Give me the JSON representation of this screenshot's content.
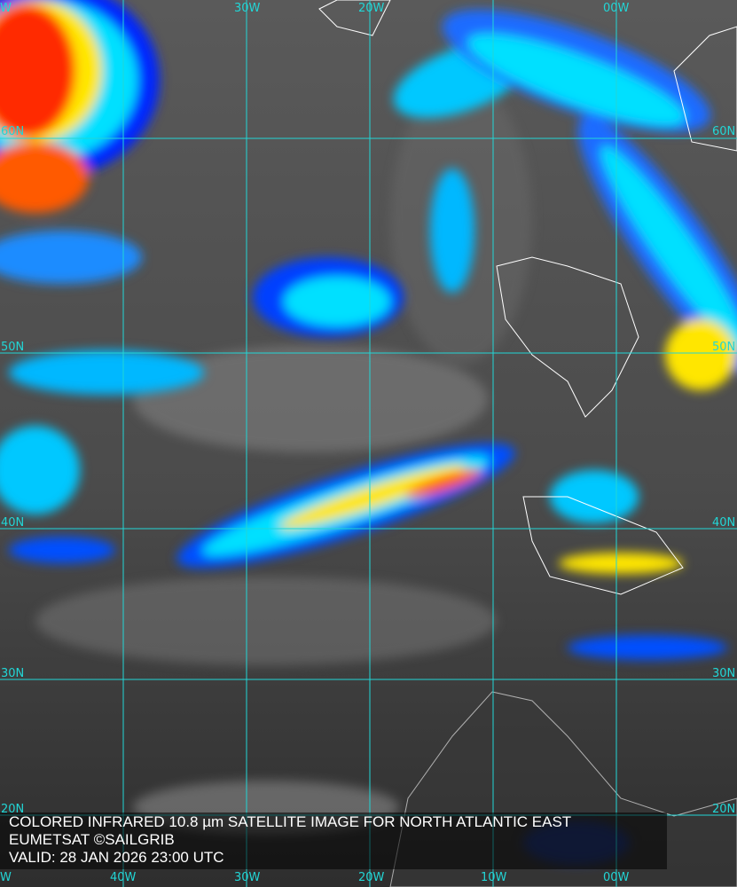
{
  "caption": {
    "title": "COLORED INFRARED 10.8 µm SATELLITE IMAGE FOR NORTH ATLANTIC EAST",
    "credit": "EUMETSAT ©SAILGRIB",
    "valid": "VALID:  28 JAN 2026 23:00 UTC"
  },
  "grid": {
    "color": "#22d6d6",
    "top_labels": [
      "W",
      "30W",
      "20W",
      "00W"
    ],
    "bottom_labels": [
      "W",
      "40W",
      "30W",
      "20W",
      "10W",
      "00W"
    ],
    "left_labels": [
      "60N",
      "50N",
      "40N",
      "30N",
      "20N"
    ],
    "right_labels": [
      "60N",
      "50N",
      "40N",
      "30N",
      "20N"
    ]
  },
  "palette": {
    "cold_top": "#ff2a00",
    "high": "#ffe600",
    "mid": "#00e0ff",
    "low": "#0028ff",
    "background": "#4a4a4a",
    "coastline": "#ffffff"
  }
}
